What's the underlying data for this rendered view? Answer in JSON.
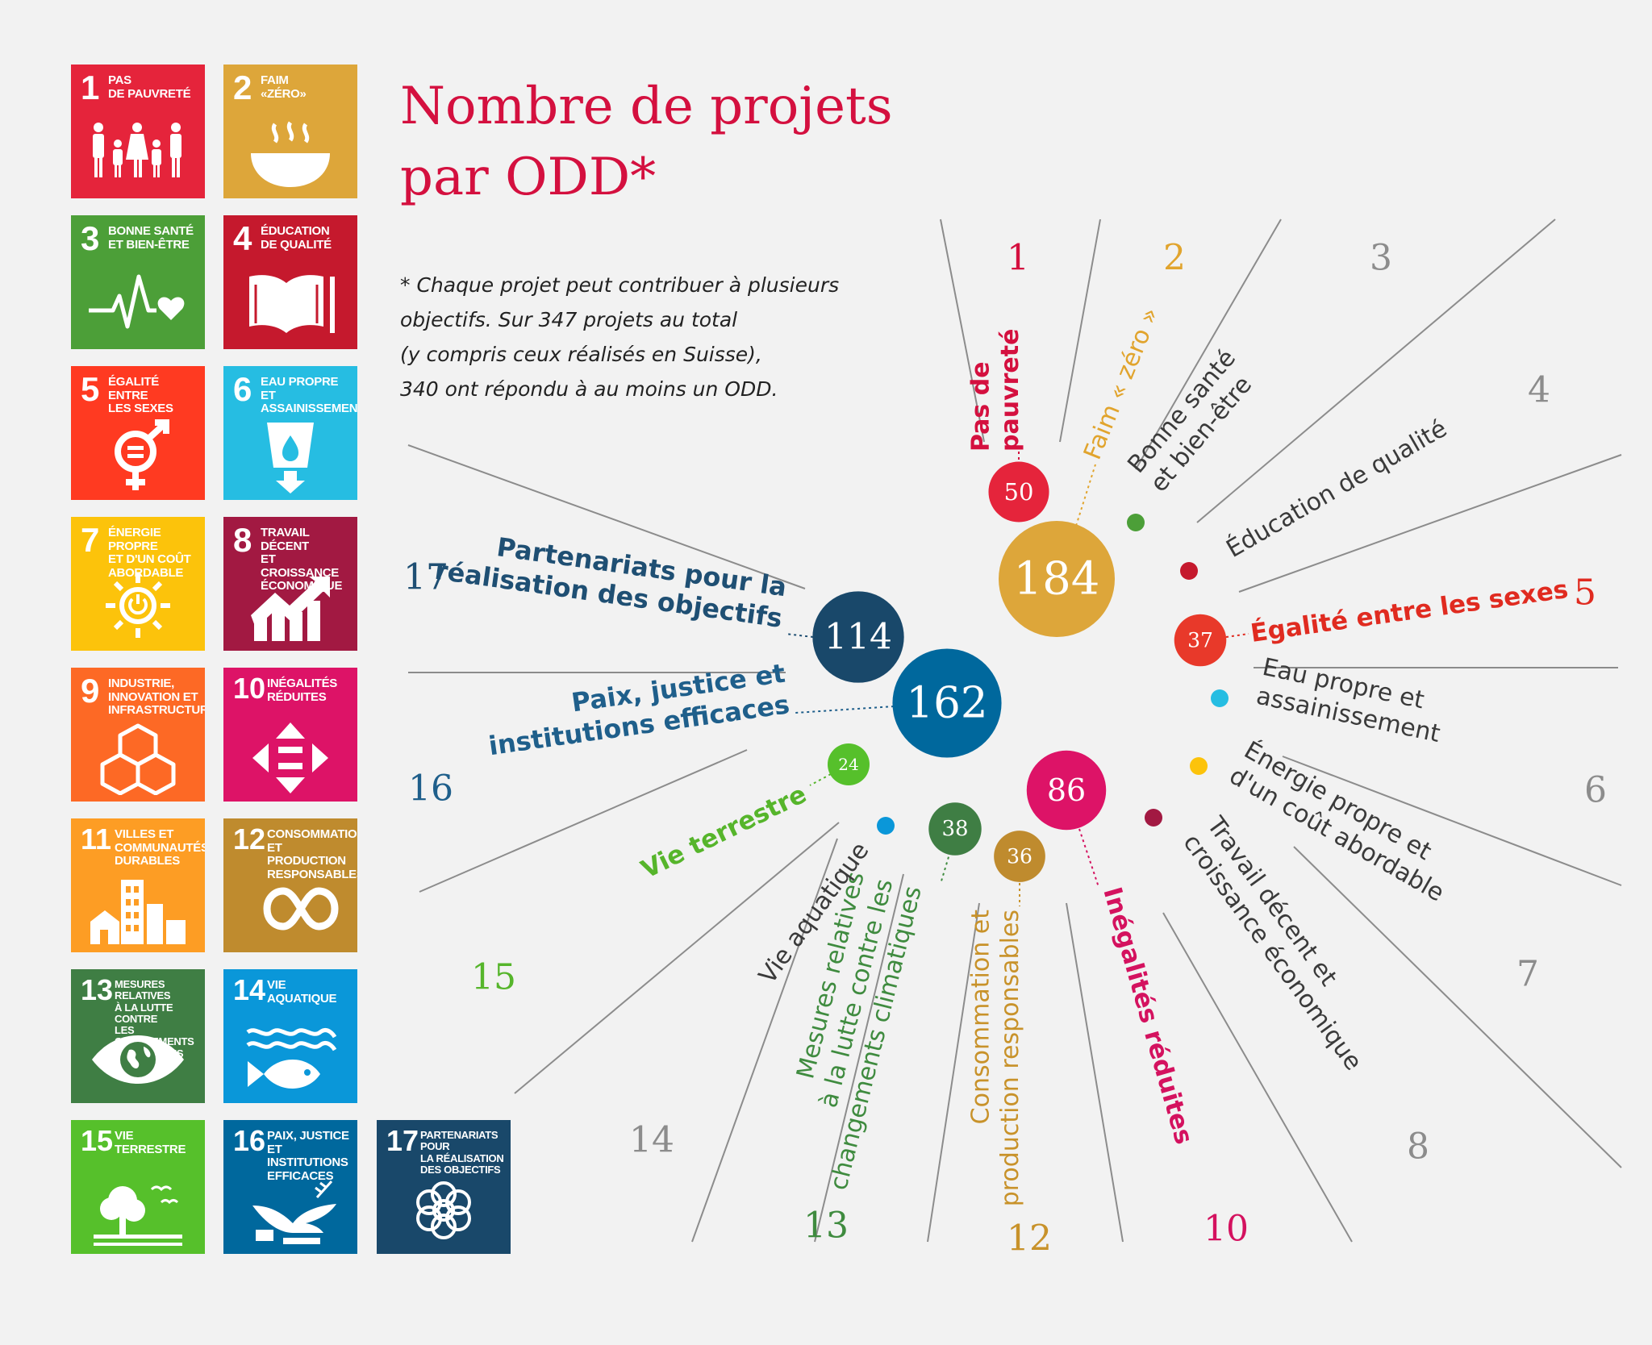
{
  "title": "Nombre de projets\npar ODD*",
  "footnote": "* Chaque projet peut contribuer à plusieurs\n   objectifs. Sur 347 projets au total\n   (y compris ceux réalisés en Suisse),\n   340 ont répondu à au moins un ODD.",
  "colors": {
    "background": "#f2f2f2",
    "title": "#d4103f",
    "line": "#8c8c8c",
    "goal_number_default": "#8c8c8c"
  },
  "tiles": [
    {
      "number": "1",
      "label": "Pas\nde pauvreté",
      "color": "#e5243b",
      "icon": "family-icon"
    },
    {
      "number": "2",
      "label": "Faim\n«zéro»",
      "color": "#dda63a",
      "icon": "bowl-icon"
    },
    {
      "number": "3",
      "label": "Bonne santé\net bien-être",
      "color": "#4c9f38",
      "icon": "heartbeat-icon"
    },
    {
      "number": "4",
      "label": "Éducation\nde qualité",
      "color": "#c5192d",
      "icon": "book-icon"
    },
    {
      "number": "5",
      "label": "Égalité entre\nles sexes",
      "color": "#ff3a21",
      "icon": "gender-icon"
    },
    {
      "number": "6",
      "label": "Eau propre et\nassainissement",
      "color": "#26bde2",
      "icon": "water-icon"
    },
    {
      "number": "7",
      "label": "Énergie propre\net d'un coût\nabordable",
      "color": "#fcc30b",
      "icon": "sun-power-icon"
    },
    {
      "number": "8",
      "label": "Travail décent\net croissance\néconomique",
      "color": "#a21942",
      "icon": "growth-chart-icon"
    },
    {
      "number": "9",
      "label": "Industrie,\ninnovation et\ninfrastructure",
      "color": "#fd6925",
      "icon": "cubes-icon"
    },
    {
      "number": "10",
      "label": "Inégalités\nréduites",
      "color": "#dd1367",
      "icon": "equality-arrows-icon"
    },
    {
      "number": "11",
      "label": "Villes et\ncommunautés\ndurables",
      "color": "#fd9d24",
      "icon": "city-icon"
    },
    {
      "number": "12",
      "label": "Consommation\net production\nresponsables",
      "color": "#bf8b2e",
      "icon": "infinity-icon"
    },
    {
      "number": "13",
      "label": "Mesures relatives\nà la lutte contre\nles changements\nclimatiques",
      "color": "#3f7e44",
      "icon": "eye-globe-icon"
    },
    {
      "number": "14",
      "label": "Vie\naquatique",
      "color": "#0a97d9",
      "icon": "fish-icon"
    },
    {
      "number": "15",
      "label": "Vie\nterrestre",
      "color": "#56c02b",
      "icon": "tree-icon"
    },
    {
      "number": "16",
      "label": "Paix, justice\net institutions\nefficaces",
      "color": "#00689d",
      "icon": "dove-icon"
    },
    {
      "number": "17",
      "label": "Partenariats\npour\nla réalisation\ndes objectifs",
      "color": "#19486a",
      "icon": "flower-icon"
    }
  ],
  "chart_data": {
    "type": "bubble",
    "title": "Nombre de projets par ODD*",
    "total_projects": 347,
    "projects_with_sdg": 340,
    "series": [
      {
        "goal": 1,
        "name": "Pas de pauvreté",
        "value": 50,
        "color": "#e5243b",
        "number_color": "#d4103f",
        "label_color": "#d4103f"
      },
      {
        "goal": 2,
        "name": "Faim « zéro »",
        "value": 184,
        "color": "#dda63a",
        "number_color": "#e1a42d",
        "label_color": "#e1a42d"
      },
      {
        "goal": 3,
        "name": "Bonne santé et bien-être",
        "value": null,
        "color": "#4c9f38",
        "number_color": "#8c8c8c",
        "label_color": "#3a3a3a"
      },
      {
        "goal": 4,
        "name": "Éducation de qualité",
        "value": null,
        "color": "#c5192d",
        "number_color": "#8c8c8c",
        "label_color": "#3a3a3a"
      },
      {
        "goal": 5,
        "name": "Égalité entre les sexes",
        "value": 37,
        "color": "#e8392a",
        "number_color": "#e02b20",
        "label_color": "#e02b20"
      },
      {
        "goal": 6,
        "name": "Eau propre et assainissement",
        "value": null,
        "color": "#26bde2",
        "number_color": "#8c8c8c",
        "label_color": "#3a3a3a"
      },
      {
        "goal": 7,
        "name": "Énergie propre et d'un coût abordable",
        "value": null,
        "color": "#fcc30b",
        "number_color": "#8c8c8c",
        "label_color": "#3a3a3a"
      },
      {
        "goal": 8,
        "name": "Travail décent et croissance économique",
        "value": null,
        "color": "#a21942",
        "number_color": "#8c8c8c",
        "label_color": "#3a3a3a"
      },
      {
        "goal": 10,
        "name": "Inégalités réduites",
        "value": 86,
        "color": "#dd1367",
        "number_color": "#d4125f",
        "label_color": "#d4125f"
      },
      {
        "goal": 12,
        "name": "Consommation et production responsables",
        "value": 36,
        "color": "#bf8b2e",
        "number_color": "#c8922a",
        "label_color": "#c8922a"
      },
      {
        "goal": 13,
        "name": "Mesures relatives à la lutte contre les changements climatiques",
        "value": 38,
        "color": "#3f7e44",
        "number_color": "#3f8b3f",
        "label_color": "#3f8b3f"
      },
      {
        "goal": 14,
        "name": "Vie aquatique",
        "value": null,
        "color": "#0a97d9",
        "number_color": "#8c8c8c",
        "label_color": "#3a3a3a"
      },
      {
        "goal": 15,
        "name": "Vie terrestre",
        "value": 24,
        "color": "#56c02b",
        "number_color": "#56b52b",
        "label_color": "#56b52b"
      },
      {
        "goal": 16,
        "name": "Paix, justice et institutions efficaces",
        "value": 162,
        "color": "#00689d",
        "number_color": "#1f5f8b",
        "label_color": "#1f5f8b"
      },
      {
        "goal": 17,
        "name": "Partenariats pour la réalisation des objectifs",
        "value": 114,
        "color": "#19486a",
        "number_color": "#1f4f73",
        "label_color": "#1f4f73"
      }
    ]
  }
}
